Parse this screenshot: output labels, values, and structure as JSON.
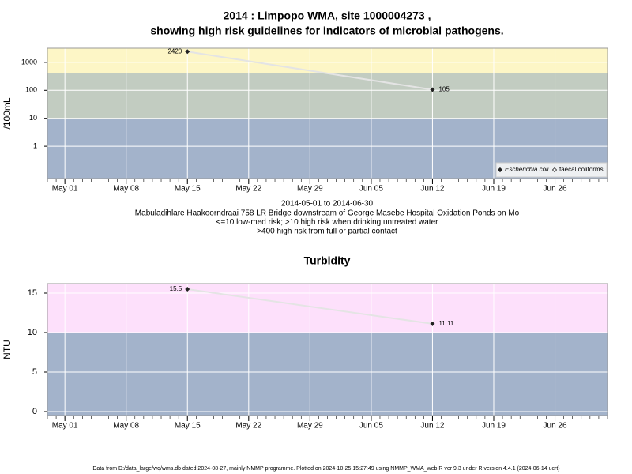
{
  "chart_data": [
    {
      "type": "line",
      "title": "2014 : Limpopo WMA, site 1000004273 ,",
      "subtitle": "showing high risk guidelines for indicators of microbial pathogens.",
      "ylabel": "/100mL",
      "log_scale": true,
      "x": [
        "May 15",
        "Jun 12"
      ],
      "series": [
        {
          "name": "Escherichia coli",
          "color": "#222222",
          "values": [
            2420,
            105
          ]
        },
        {
          "name": "faecal coliforms",
          "color": "#222222",
          "values": [
            null,
            null
          ]
        }
      ],
      "xlim": [
        "Apr 29",
        "Jul 02"
      ],
      "xticks": [
        "May 01",
        "May 08",
        "May 15",
        "May 22",
        "May 29",
        "Jun 05",
        "Jun 12",
        "Jun 19",
        "Jun 26"
      ],
      "ylim": [
        0.07,
        3200
      ],
      "yticks": [
        1,
        10,
        100,
        1000
      ],
      "bands": [
        {
          "from": 0.07,
          "to": 10,
          "color": "#a3b3cb"
        },
        {
          "from": 10,
          "to": 400,
          "color": "#c2ccc1"
        },
        {
          "from": 400,
          "to": 3200,
          "color": "#fdf6c6"
        }
      ],
      "grid": true,
      "legend": "lower right",
      "notes": [
        "2014-05-01 to 2014-06-30",
        "Mabuladihlare Haakoorndraai 758 LR Bridge downstream of George Masebe Hospital Oxidation Ponds on Mo",
        "<=10 low-med risk; >10 high risk when drinking untreated water",
        ">400 high risk from full or partial contact"
      ]
    },
    {
      "type": "line",
      "title": "Turbidity",
      "ylabel": "NTU",
      "log_scale": false,
      "x": [
        "May 15",
        "Jun 12"
      ],
      "values": [
        15.5,
        11.11
      ],
      "color": "#222222",
      "xlim": [
        "Apr 29",
        "Jul 02"
      ],
      "xticks": [
        "May 01",
        "May 08",
        "May 15",
        "May 22",
        "May 29",
        "Jun 05",
        "Jun 12",
        "Jun 19",
        "Jun 26"
      ],
      "ylim": [
        -0.5,
        16.2
      ],
      "yticks": [
        0,
        5,
        10,
        15
      ],
      "bands": [
        {
          "from": -0.5,
          "to": 10,
          "color": "#a3b3cb"
        },
        {
          "from": 10,
          "to": 16.2,
          "color": "#fde0fb"
        }
      ],
      "grid": true
    }
  ],
  "footer": "Data from D:/data_large/wq/wms.db dated 2024-08-27, mainly NMMP programme. Plotted on 2024-10-25 15:27:49 using NMMP_WMA_web.R ver 9.3 under R version 4.4.1 (2024-06-14 ucrt)"
}
